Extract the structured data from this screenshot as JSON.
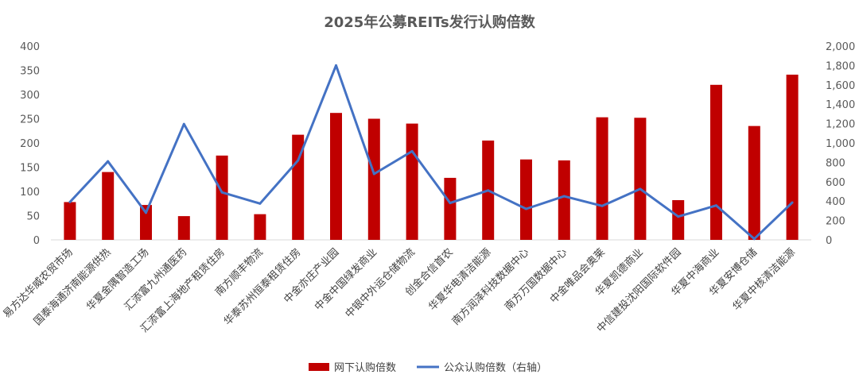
{
  "chart_data": {
    "type": "bar",
    "title": "2025年公募REITs发行认购倍数",
    "categories": [
      "易方达华威农贸市场",
      "国泰海通济南能源供热",
      "华夏金隅智造工场",
      "汇添富九州通医药",
      "汇添富上海地产租赁住房",
      "南方顺丰物流",
      "华泰苏州恒泰租赁住房",
      "中金亦庄产业园",
      "中金中国绿发商业",
      "中银中外运仓储物流",
      "创金合信首农",
      "华夏华电清洁能源",
      "南方润泽科技数据中心",
      "南方万国数据中心",
      "中金唯品会奥莱",
      "华夏凯德商业",
      "中信建投沈阳国际软件园",
      "华夏中海商业",
      "华夏安博仓储",
      "华夏中核清洁能源"
    ],
    "series": [
      {
        "name": "网下认购倍数",
        "type": "bar",
        "axis": "left",
        "color": "#c00000",
        "values": [
          78,
          140,
          72,
          49,
          174,
          53,
          217,
          262,
          250,
          240,
          128,
          205,
          166,
          164,
          253,
          252,
          82,
          320,
          235,
          341
        ]
      },
      {
        "name": "公众认购倍数（右轴）",
        "type": "line",
        "axis": "right",
        "color": "#4472c4",
        "values": [
          390,
          810,
          280,
          1195,
          490,
          375,
          820,
          1800,
          680,
          915,
          380,
          510,
          320,
          450,
          350,
          525,
          240,
          355,
          10,
          385
        ]
      }
    ],
    "ylim": [
      0,
      400
    ],
    "y_ticks": [
      "0",
      "50",
      "100",
      "150",
      "200",
      "250",
      "300",
      "350",
      "400"
    ],
    "y2lim": [
      0,
      2000
    ],
    "y2_ticks": [
      "0",
      "200",
      "400",
      "600",
      "800",
      "1,000",
      "1,200",
      "1,400",
      "1,600",
      "1,800",
      "2,000"
    ],
    "grid": false,
    "legend_position": "bottom"
  }
}
